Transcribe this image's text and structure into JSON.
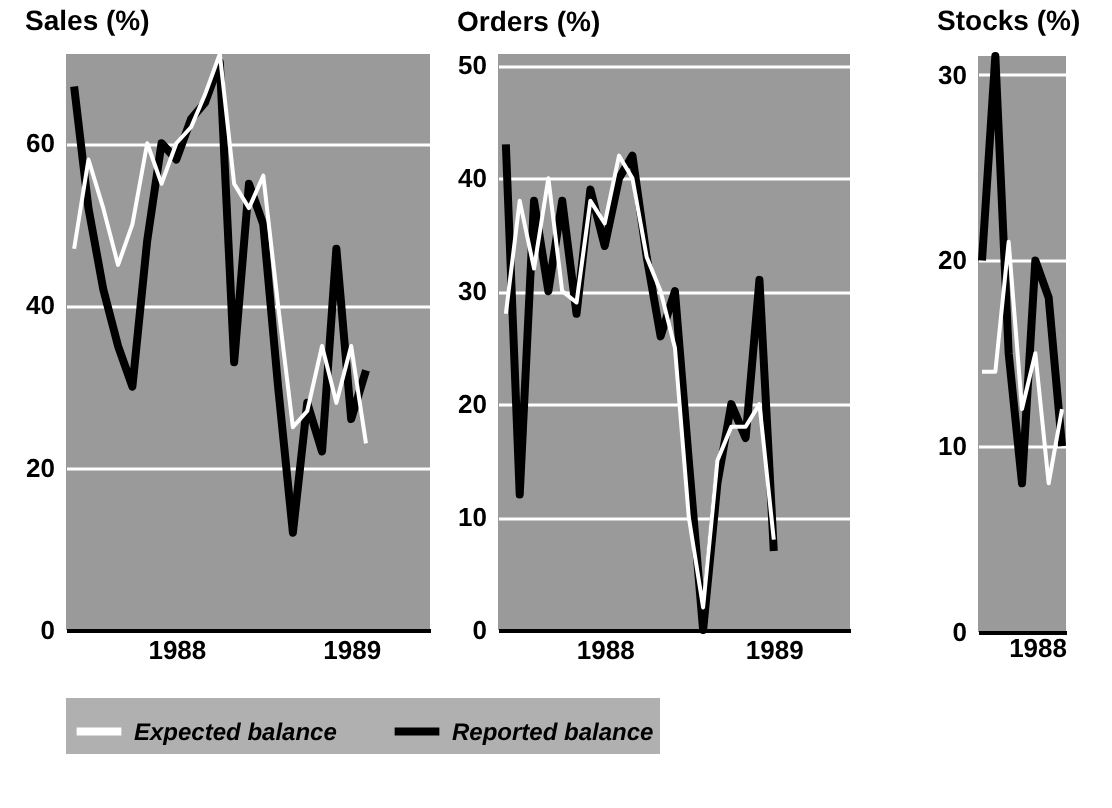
{
  "chart_data": [
    {
      "type": "line",
      "title": "Sales (%)",
      "xlim": [
        "1987-05-15",
        "1989-06-15"
      ],
      "xticks": [
        "1988",
        "1989"
      ],
      "ylim": [
        0,
        71
      ],
      "yticks": [
        0,
        20,
        40,
        60
      ],
      "grid": "y",
      "legend": "bottom",
      "x": [
        "1987-06",
        "1987-07",
        "1987-08",
        "1987-09",
        "1987-10",
        "1987-11",
        "1987-12",
        "1988-01",
        "1988-02",
        "1988-03",
        "1988-04",
        "1988-05",
        "1988-06",
        "1988-07",
        "1988-08",
        "1988-09",
        "1988-10",
        "1988-11",
        "1988-12",
        "1989-01",
        "1989-02"
      ],
      "series": [
        {
          "name": "Expected balance",
          "color": "#ffffff",
          "values": [
            47,
            58,
            52,
            45,
            50,
            60,
            55,
            60,
            62,
            66,
            71,
            55,
            52,
            56,
            40,
            25,
            27,
            35,
            28,
            35,
            23
          ]
        },
        {
          "name": "Reported balance",
          "color": "#000000",
          "values": [
            67,
            52,
            42,
            35,
            30,
            48,
            60,
            58,
            63,
            65,
            70,
            33,
            55,
            50,
            30,
            12,
            28,
            22,
            47,
            26,
            32
          ]
        }
      ]
    },
    {
      "type": "line",
      "title": "Orders (%)",
      "xlim": [
        "1987-05-15",
        "1989-06-15"
      ],
      "xticks": [
        "1988",
        "1989"
      ],
      "ylim": [
        0,
        51
      ],
      "yticks": [
        0,
        10,
        20,
        30,
        40,
        50
      ],
      "grid": "y",
      "x": [
        "1987-06",
        "1987-07",
        "1987-08",
        "1987-09",
        "1987-10",
        "1987-11",
        "1987-12",
        "1988-01",
        "1988-02",
        "1988-03",
        "1988-04",
        "1988-05",
        "1988-06",
        "1988-07",
        "1988-08",
        "1988-09",
        "1988-10",
        "1988-11",
        "1988-12",
        "1989-01"
      ],
      "series": [
        {
          "color": "#ffffff",
          "values": [
            28,
            38,
            32,
            40,
            30,
            29,
            38,
            36,
            42,
            40,
            33,
            30,
            25,
            10,
            2,
            15,
            18,
            18,
            20,
            8
          ]
        },
        {
          "color": "#000000",
          "values": [
            43,
            12,
            38,
            30,
            38,
            28,
            39,
            34,
            40,
            42,
            33,
            26,
            30,
            15,
            0,
            13,
            20,
            17,
            31,
            7
          ]
        }
      ]
    },
    {
      "type": "line",
      "title": "Stocks (%)",
      "ylim": [
        0,
        31
      ],
      "yticks": [
        0,
        10,
        20,
        30
      ],
      "grid": "y",
      "annotations": [
        "1988"
      ],
      "categories": [
        null,
        null,
        null,
        null,
        null,
        null,
        null
      ],
      "series": [
        {
          "color": "#ffffff",
          "values": [
            14,
            14,
            21,
            12,
            15,
            8,
            12
          ]
        },
        {
          "color": "#000000",
          "values": [
            20,
            31,
            15,
            8,
            20,
            18,
            10
          ]
        }
      ]
    }
  ]
}
